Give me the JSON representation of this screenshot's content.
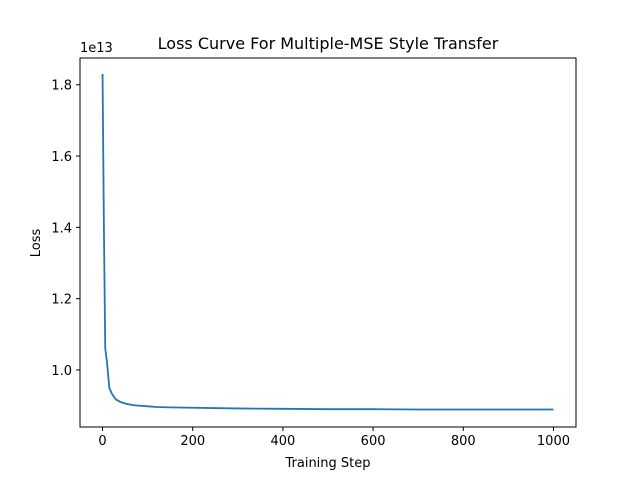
{
  "chart_data": {
    "type": "line",
    "title": "Loss Curve For Multiple-MSE Style Transfer",
    "xlabel": "Training Step",
    "ylabel": "Loss",
    "offset_text": "1e13",
    "xlim": [
      -50,
      1050
    ],
    "ylim": [
      0.84,
      1.875
    ],
    "x_ticks": [
      0,
      200,
      400,
      600,
      800,
      1000
    ],
    "x_tick_labels": [
      "0",
      "200",
      "400",
      "600",
      "800",
      "1000"
    ],
    "y_ticks": [
      1.0,
      1.2,
      1.4,
      1.6,
      1.8
    ],
    "y_tick_labels": [
      "1.0",
      "1.2",
      "1.4",
      "1.6",
      "1.8"
    ],
    "grid": false,
    "line_color": "#1f77b4",
    "series": [
      {
        "x": [
          0,
          3,
          6,
          10,
          15,
          20,
          25,
          30,
          40,
          50,
          60,
          70,
          80,
          100,
          120,
          150,
          200,
          300,
          400,
          500,
          600,
          700,
          800,
          900,
          1000
        ],
        "values": [
          1.83,
          1.4,
          1.06,
          1.02,
          0.95,
          0.935,
          0.925,
          0.917,
          0.91,
          0.906,
          0.903,
          0.901,
          0.9,
          0.898,
          0.896,
          0.895,
          0.894,
          0.892,
          0.891,
          0.89,
          0.89,
          0.889,
          0.889,
          0.889,
          0.889
        ]
      }
    ]
  }
}
